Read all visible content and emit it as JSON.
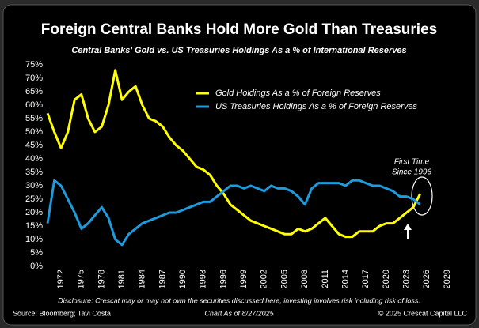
{
  "chart_data": {
    "type": "line",
    "title": "Foreign Central Banks Hold More Gold Than Treasuries",
    "subtitle": "Central Banks' Gold vs. US Treasuries Holdings As a % of International Reserves",
    "x": [
      1970,
      1971,
      1972,
      1973,
      1974,
      1975,
      1976,
      1977,
      1978,
      1979,
      1980,
      1981,
      1982,
      1983,
      1984,
      1985,
      1986,
      1987,
      1988,
      1989,
      1990,
      1991,
      1992,
      1993,
      1994,
      1995,
      1996,
      1997,
      1998,
      1999,
      2000,
      2001,
      2002,
      2003,
      2004,
      2005,
      2006,
      2007,
      2008,
      2009,
      2010,
      2011,
      2012,
      2013,
      2014,
      2015,
      2016,
      2017,
      2018,
      2019,
      2020,
      2021,
      2022,
      2023,
      2024,
      2025
    ],
    "series": [
      {
        "name": "Gold Holdings As a % of Foreign Reserves",
        "color": "#ffff00",
        "values": [
          57,
          50,
          44,
          50,
          62,
          64,
          55,
          50,
          52,
          60,
          73,
          62,
          65,
          67,
          60,
          55,
          54,
          52,
          48,
          45,
          43,
          40,
          37,
          36,
          34,
          30,
          27,
          23,
          21,
          19,
          17,
          16,
          15,
          14,
          13,
          12,
          12,
          14,
          13,
          14,
          16,
          18,
          15,
          12,
          11,
          11,
          13,
          13,
          13,
          15,
          16,
          16,
          18,
          20,
          22,
          27
        ]
      },
      {
        "name": "US Treasuries Holdings As a % of Foreign Reserves",
        "color": "#1e9bdc",
        "values": [
          16,
          32,
          30,
          25,
          20,
          14,
          16,
          19,
          22,
          18,
          10,
          8,
          12,
          14,
          16,
          17,
          18,
          19,
          20,
          20,
          21,
          22,
          23,
          24,
          24,
          26,
          28,
          30,
          30,
          29,
          30,
          29,
          28,
          30,
          29,
          29,
          28,
          26,
          23,
          29,
          31,
          31,
          31,
          31,
          30,
          32,
          32,
          31,
          30,
          30,
          29,
          28,
          26,
          26,
          25,
          23
        ]
      }
    ],
    "xlim": [
      1970,
      2031
    ],
    "ylim": [
      0,
      75
    ],
    "xticks": [
      1972,
      1975,
      1978,
      1981,
      1984,
      1987,
      1990,
      1993,
      1996,
      1999,
      2002,
      2005,
      2008,
      2011,
      2014,
      2017,
      2020,
      2023,
      2026,
      2029
    ],
    "yticks": [
      {
        "value": 0,
        "label": "0%"
      },
      {
        "value": 5,
        "label": "5%"
      },
      {
        "value": 10,
        "label": "10%"
      },
      {
        "value": 15,
        "label": "15%"
      },
      {
        "value": 20,
        "label": "20%"
      },
      {
        "value": 25,
        "label": "25%"
      },
      {
        "value": 30,
        "label": "30%"
      },
      {
        "value": 35,
        "label": "35%"
      },
      {
        "value": 40,
        "label": "40%"
      },
      {
        "value": 45,
        "label": "45%"
      },
      {
        "value": 50,
        "label": "50%"
      },
      {
        "value": 55,
        "label": "55%"
      },
      {
        "value": 60,
        "label": "60%"
      },
      {
        "value": 65,
        "label": "65%"
      },
      {
        "value": 70,
        "label": "70%"
      },
      {
        "value": 75,
        "label": "75%"
      }
    ],
    "annotation": [
      "First Time",
      "Since 1996"
    ],
    "disclosure": "Disclosure: Crescat may or may not own the securities discussed here, investing involves risk including risk of loss.",
    "source": "Source: Bloomberg; Tavi Costa",
    "chart_date": "Chart As of 8/27/2025",
    "copyright": "© 2025 Crescat Capital LLC"
  }
}
